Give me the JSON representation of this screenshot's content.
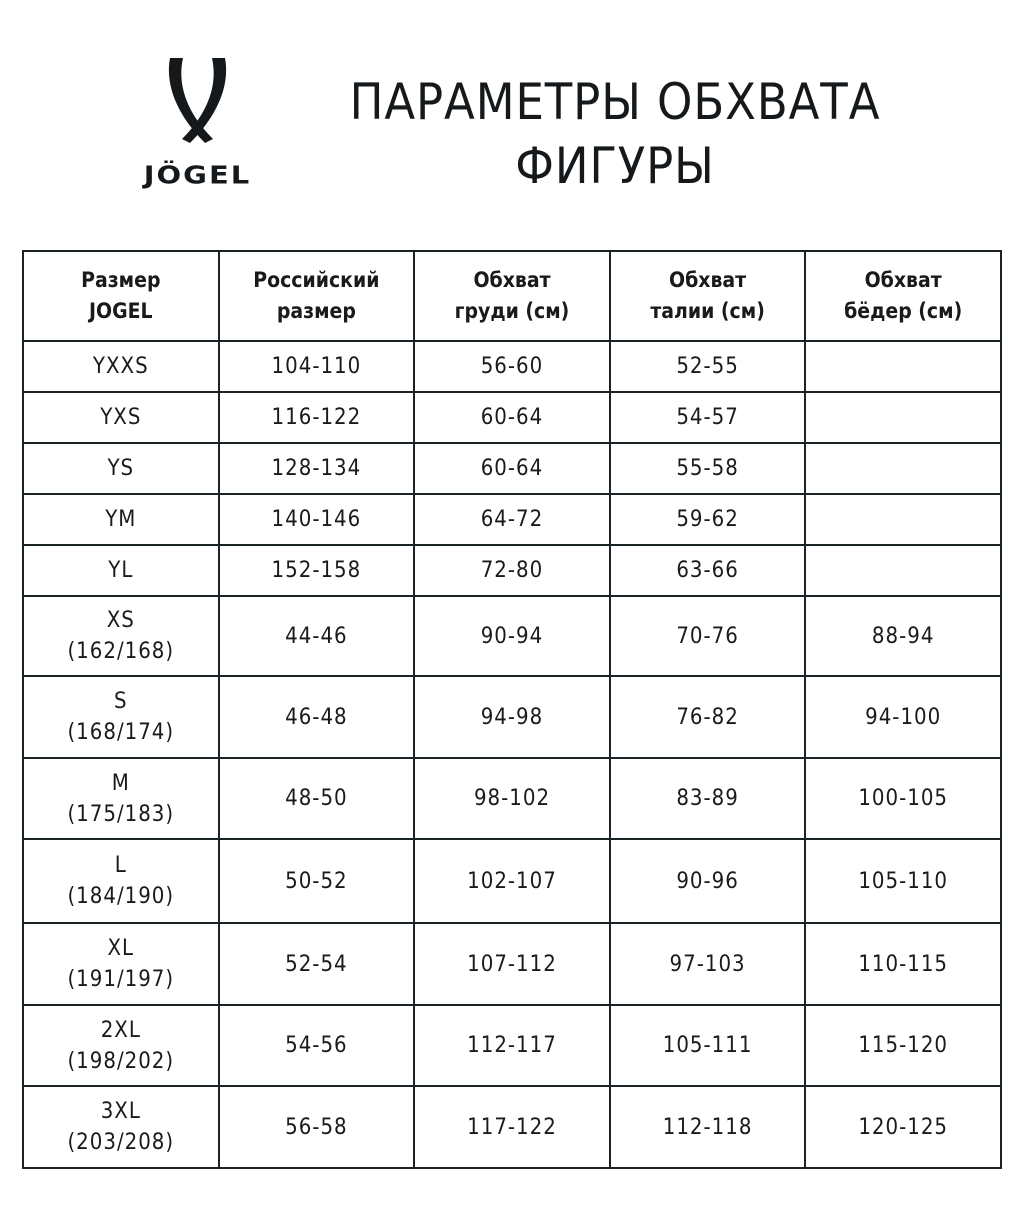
{
  "logo": {
    "brand": "JÖGEL"
  },
  "title": [
    "ПАРАМЕТРЫ ОБХВАТА",
    "ФИГУРЫ"
  ],
  "headers": [
    [
      "Размер",
      "JOGEL"
    ],
    [
      "Российский",
      "размер"
    ],
    [
      "Обхват",
      "груди (см)"
    ],
    [
      "Обхват",
      "талии (см)"
    ],
    [
      "Обхват",
      "бёдер (см)"
    ]
  ],
  "rows": [
    {
      "size": "YXXS",
      "height": "",
      "ru": "104-110",
      "chest": "56-60",
      "waist": "52-55",
      "hips": ""
    },
    {
      "size": "YXS",
      "height": "",
      "ru": "116-122",
      "chest": "60-64",
      "waist": "54-57",
      "hips": ""
    },
    {
      "size": "YS",
      "height": "",
      "ru": "128-134",
      "chest": "60-64",
      "waist": "55-58",
      "hips": ""
    },
    {
      "size": "YM",
      "height": "",
      "ru": "140-146",
      "chest": "64-72",
      "waist": "59-62",
      "hips": ""
    },
    {
      "size": "YL",
      "height": "",
      "ru": "152-158",
      "chest": "72-80",
      "waist": "63-66",
      "hips": ""
    },
    {
      "size": "XS",
      "height": "(162/168)",
      "ru": "44-46",
      "chest": "90-94",
      "waist": "70-76",
      "hips": "88-94"
    },
    {
      "size": "S",
      "height": "(168/174)",
      "ru": "46-48",
      "chest": "94-98",
      "waist": "76-82",
      "hips": "94-100"
    },
    {
      "size": "M",
      "height": "(175/183)",
      "ru": "48-50",
      "chest": "98-102",
      "waist": "83-89",
      "hips": "100-105"
    },
    {
      "size": "L",
      "height": "(184/190)",
      "ru": "50-52",
      "chest": "102-107",
      "waist": "90-96",
      "hips": "105-110"
    },
    {
      "size": "XL",
      "height": "(191/197)",
      "ru": "52-54",
      "chest": "107-112",
      "waist": "97-103",
      "hips": "110-115"
    },
    {
      "size": "2XL",
      "height": "(198/202)",
      "ru": "54-56",
      "chest": "112-117",
      "waist": "105-111",
      "hips": "115-120"
    },
    {
      "size": "3XL",
      "height": "(203/208)",
      "ru": "56-58",
      "chest": "117-122",
      "waist": "112-118",
      "hips": "120-125"
    }
  ]
}
